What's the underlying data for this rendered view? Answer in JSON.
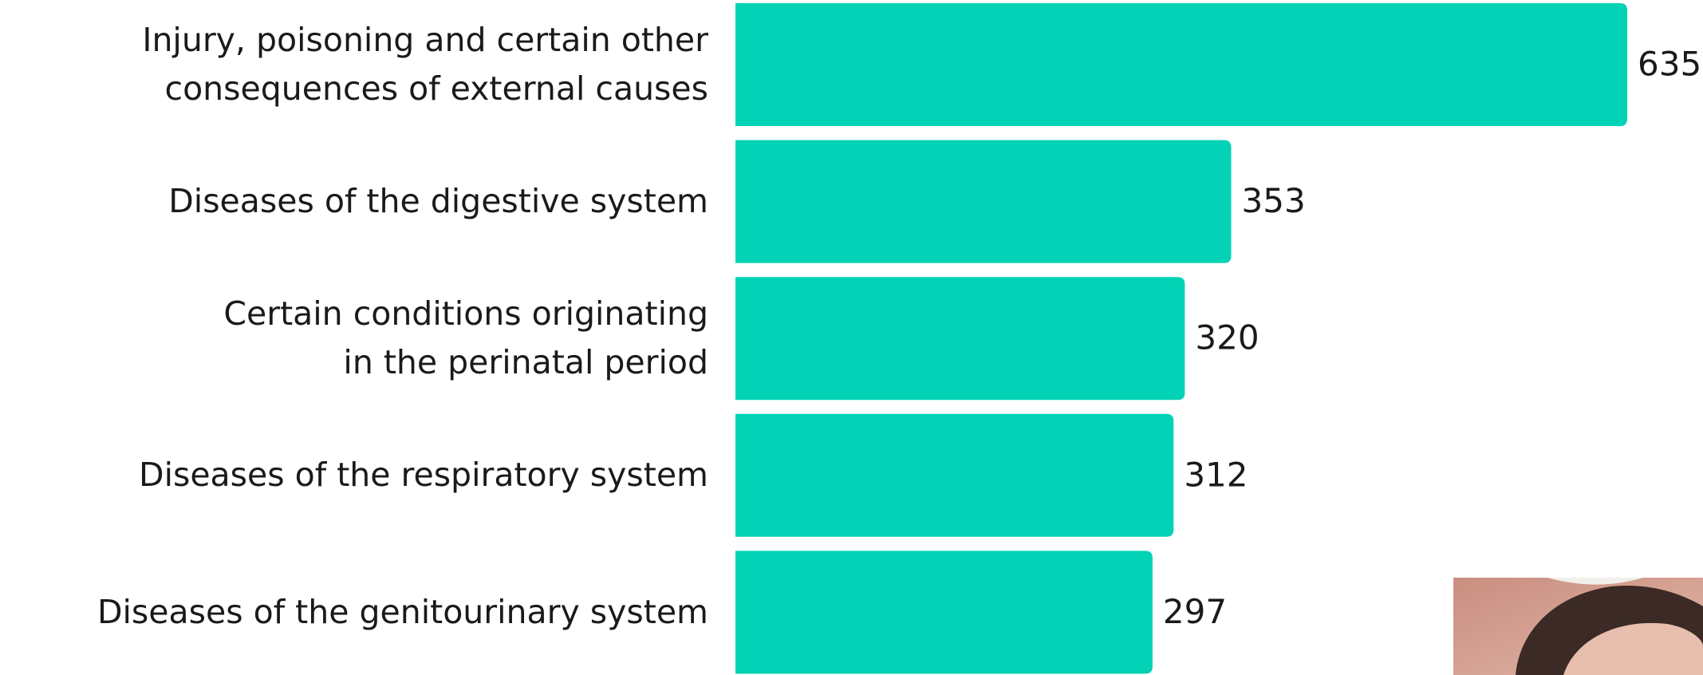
{
  "chart_data": {
    "type": "bar",
    "orientation": "horizontal",
    "categories": [
      "Injury, poisoning and certain other\nconsequences of external causes",
      "Diseases of the digestive system",
      "Certain conditions originating\nin the perinatal period",
      "Diseases of the respiratory system",
      "Diseases of the genitourinary system"
    ],
    "values": [
      635,
      353,
      320,
      312,
      297
    ],
    "color": "#02d2b5"
  }
}
